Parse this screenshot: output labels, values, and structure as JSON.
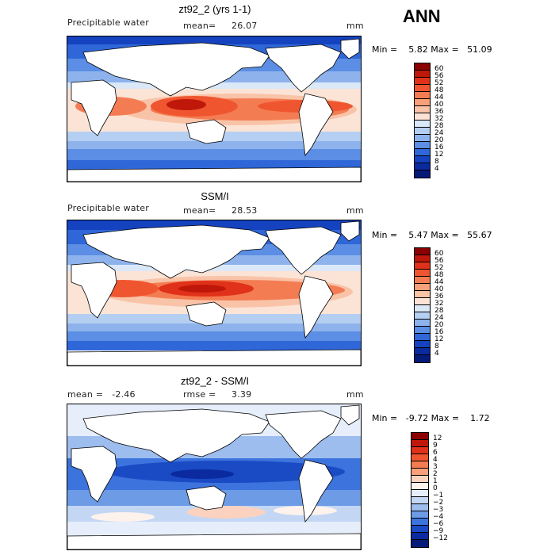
{
  "season": "ANN",
  "panels": [
    {
      "title": "zt92_2 (yrs 1-1)",
      "left_label": "Precipitable water",
      "stat_label": "mean=",
      "stat_value": "26.07",
      "units": "mm",
      "range_text": "Min =    5.82 Max =   51.09",
      "colorbar_labels": [
        "60",
        "56",
        "52",
        "48",
        "44",
        "40",
        "36",
        "32",
        "28",
        "24",
        "20",
        "16",
        "12",
        "8",
        "4"
      ],
      "colorbar_colors": [
        "#8b0000",
        "#c0170b",
        "#e0321a",
        "#ef5630",
        "#f47c52",
        "#f7a07a",
        "#f9c3a8",
        "#fbe4d6",
        "#dbe8f8",
        "#b5cff2",
        "#8eb3ec",
        "#5b8ee4",
        "#2f67d8",
        "#1543c0",
        "#0b2aa0",
        "#061a78"
      ]
    },
    {
      "title": "SSM/I",
      "left_label": "Precipitable water",
      "stat_label": "mean=",
      "stat_value": "28.53",
      "units": "mm",
      "range_text": "Min =    5.47 Max =   55.67",
      "colorbar_labels": [
        "60",
        "56",
        "52",
        "48",
        "44",
        "40",
        "36",
        "32",
        "28",
        "24",
        "20",
        "16",
        "12",
        "8",
        "4"
      ],
      "colorbar_colors": [
        "#8b0000",
        "#c0170b",
        "#e0321a",
        "#ef5630",
        "#f47c52",
        "#f7a07a",
        "#f9c3a8",
        "#fbe4d6",
        "#dbe8f8",
        "#b5cff2",
        "#8eb3ec",
        "#5b8ee4",
        "#2f67d8",
        "#1543c0",
        "#0b2aa0",
        "#061a78"
      ]
    },
    {
      "title": "zt92_2 - SSM/I",
      "left_label": "mean =   -2.46",
      "stat_label": "rmse =",
      "stat_value": "3.39",
      "units": "mm",
      "range_text": "Min =   -9.72 Max =    1.72",
      "colorbar_labels": [
        "12",
        "9",
        "6",
        "4",
        "3",
        "2",
        "1",
        "0",
        "−1",
        "−2",
        "−3",
        "−4",
        "−6",
        "−9",
        "−12"
      ],
      "colorbar_colors": [
        "#8b0000",
        "#c0170b",
        "#e0321a",
        "#ef5630",
        "#f47c52",
        "#f7a07a",
        "#fbd2bf",
        "#fdf2ec",
        "#e6eefb",
        "#c3d7f4",
        "#9cbdee",
        "#6d9be6",
        "#3c73dc",
        "#1a4ac4",
        "#0b2aa0",
        "#061a78"
      ]
    }
  ]
}
